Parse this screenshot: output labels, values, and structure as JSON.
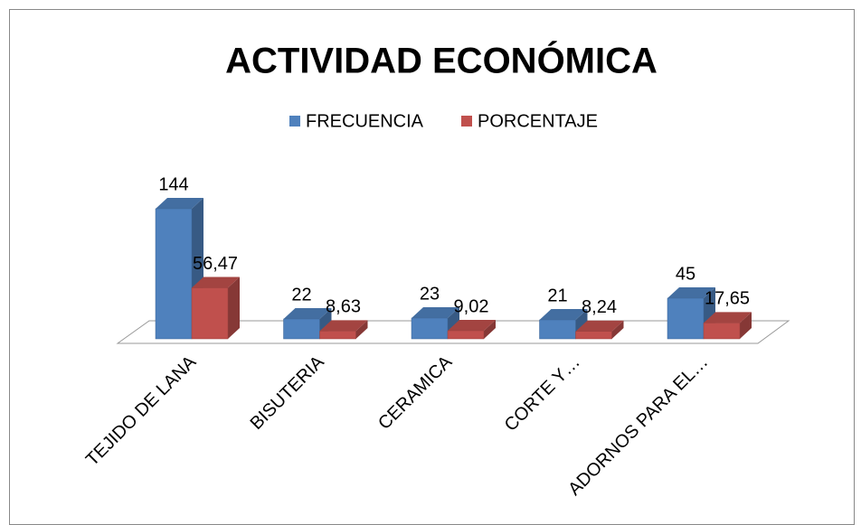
{
  "chart_data": {
    "type": "bar3d",
    "title": "ACTIVIDAD ECONÓMICA",
    "categories": [
      "TEJIDO DE LANA",
      "BISUTERIA",
      "CERAMICA",
      "CORTE Y…",
      "ADORNOS PARA EL…"
    ],
    "series": [
      {
        "name": "FRECUENCIA",
        "color": "#4f81bd",
        "values": [
          144,
          22,
          23,
          21,
          45
        ]
      },
      {
        "name": "PORCENTAJE",
        "color": "#c0504d",
        "values": [
          56.47,
          8.63,
          9.02,
          8.24,
          17.65
        ],
        "value_labels": [
          "56,47",
          "8,63",
          "9,02",
          "8,24",
          "17,65"
        ]
      }
    ],
    "legend": "top"
  }
}
